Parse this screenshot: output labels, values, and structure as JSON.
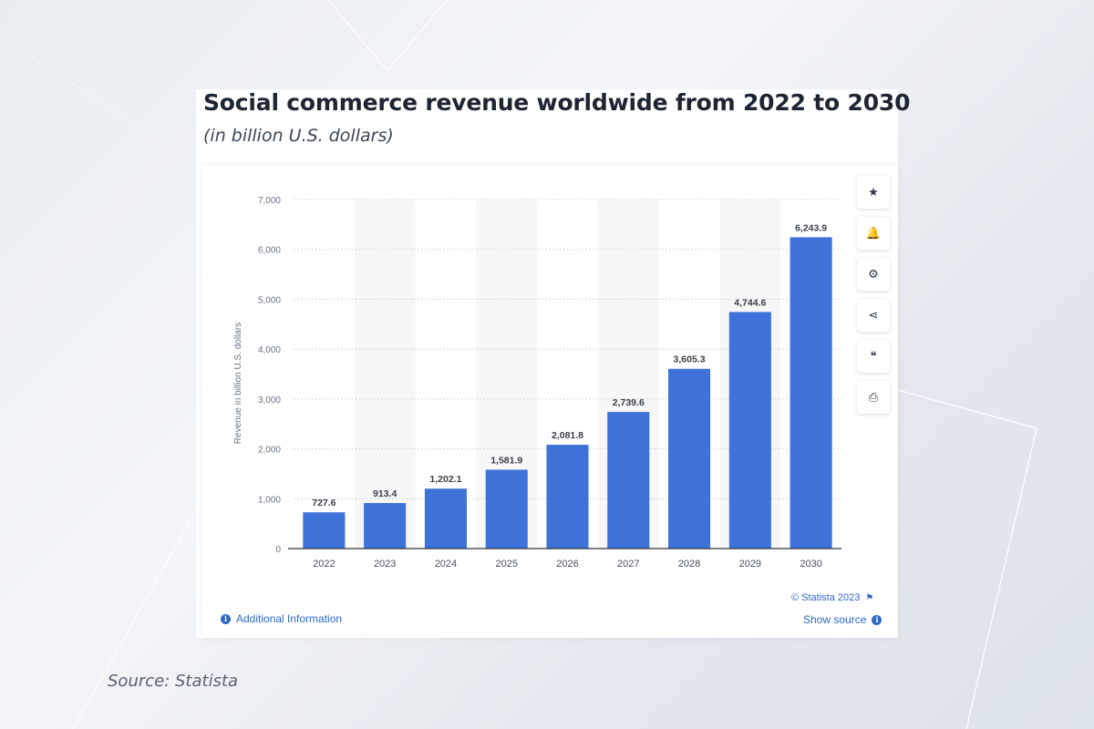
{
  "title": "Social commerce revenue worldwide from 2022 to 2030",
  "subtitle": "(in billion U.S. dollars)",
  "chart_data": {
    "type": "bar",
    "categories": [
      "2022",
      "2023",
      "2024",
      "2025",
      "2026",
      "2027",
      "2028",
      "2029",
      "2030"
    ],
    "values": [
      727.6,
      913.4,
      1202.1,
      1581.9,
      2081.8,
      2739.6,
      3605.3,
      4744.6,
      6243.9
    ],
    "value_labels": [
      "727.6",
      "913.4",
      "1,202.1",
      "1,581.9",
      "2,081.8",
      "2,739.6",
      "3,605.3",
      "4,744.6",
      "6,243.9"
    ],
    "ylabel": "Revenue in billion U.S. dollars",
    "xlabel": "",
    "ylim": [
      0,
      7000
    ],
    "yticks": [
      0,
      1000,
      2000,
      3000,
      4000,
      5000,
      6000,
      7000
    ],
    "ytick_labels": [
      "0",
      "1,000",
      "2,000",
      "3,000",
      "4,000",
      "5,000",
      "6,000",
      "7,000"
    ],
    "grid": true,
    "bar_color": "#3e72d8"
  },
  "toolbar": [
    {
      "name": "star-button",
      "icon": "★"
    },
    {
      "name": "bell-button",
      "icon": "🔔"
    },
    {
      "name": "settings-button",
      "icon": "⚙"
    },
    {
      "name": "share-button",
      "icon": "⋖"
    },
    {
      "name": "cite-button",
      "icon": "❝"
    },
    {
      "name": "print-button",
      "icon": "⎙"
    }
  ],
  "footer": {
    "additional_info": "Additional Information",
    "copyright": "© Statista 2023",
    "show_source": "Show source"
  },
  "caption": "Source: Statista"
}
